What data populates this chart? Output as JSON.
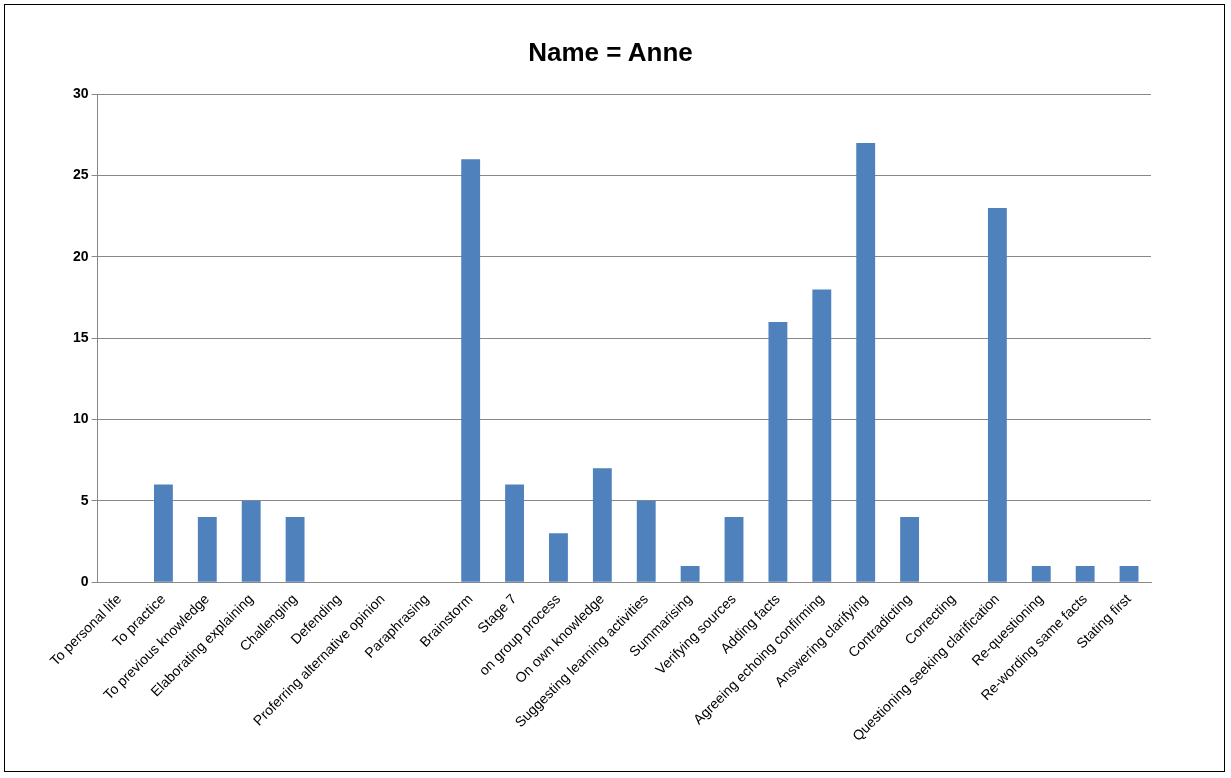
{
  "chart_data": {
    "type": "bar",
    "title": "Name = Anne",
    "categories": [
      "To personal life",
      "To practice",
      "To previous knowledge",
      "Elaborating explaining",
      "Challenging",
      "Defending",
      "Proferring alternative opinion",
      "Paraphrasing",
      "Brainstorm",
      "Stage 7",
      "on group process",
      "On own knowledge",
      "Suggesting learning activities",
      "Summarising",
      "Verifying sources",
      "Adding facts",
      "Agreeing echoing confirming",
      "Answering clarifying",
      "Contradicting",
      "Correcting",
      "Questioning seeking clarification",
      "Re-questioning",
      "Re-wording same facts",
      "Stating first"
    ],
    "values": [
      0,
      6,
      4,
      5,
      4,
      0,
      0,
      0,
      26,
      6,
      3,
      7,
      5,
      1,
      4,
      16,
      18,
      27,
      4,
      0,
      23,
      1,
      1,
      1
    ],
    "color": "#4f81bd",
    "ylim": [
      0,
      30
    ],
    "yticks": [
      0,
      5,
      10,
      15,
      20,
      25,
      30
    ],
    "grid": "y",
    "legend": false
  }
}
